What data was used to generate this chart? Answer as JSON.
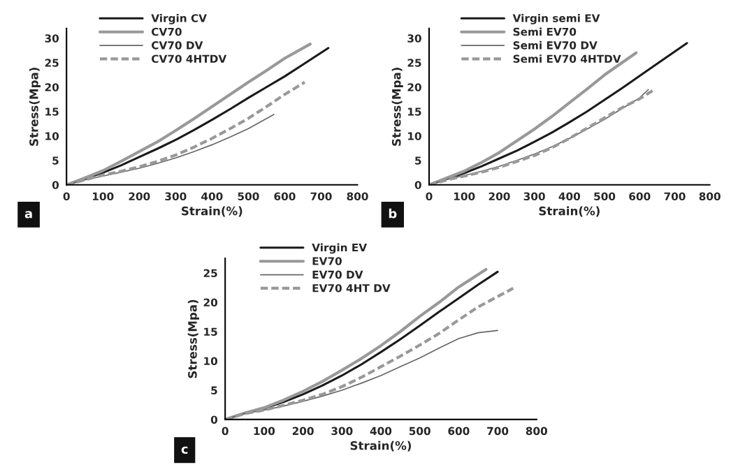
{
  "chart_data": [
    {
      "type": "line",
      "xlabel": "Strain(%)",
      "ylabel": "Stress(Mpa)",
      "xlim": [
        0,
        800
      ],
      "ylim": [
        0,
        32
      ],
      "xticks": [
        0,
        100,
        200,
        300,
        400,
        500,
        600,
        700,
        800
      ],
      "yticks": [
        0,
        5,
        10,
        15,
        20,
        25,
        30
      ],
      "grid": false,
      "legend": "top left",
      "marker": "none",
      "annotations": [
        "a"
      ],
      "series": [
        {
          "name": "Virgin CV",
          "color": "#1a1a1a",
          "line_style": "solid",
          "x": [
            0,
            50,
            100,
            150,
            200,
            250,
            300,
            350,
            400,
            450,
            500,
            550,
            600,
            650,
            720
          ],
          "values": [
            0,
            1.2,
            2.5,
            4,
            5.7,
            7.4,
            9.2,
            11.2,
            13.3,
            15.5,
            17.8,
            20,
            22.2,
            24.6,
            28
          ]
        },
        {
          "name": "CV70",
          "color": "#999999",
          "line_style": "solid",
          "x": [
            0,
            50,
            100,
            150,
            200,
            250,
            300,
            350,
            400,
            450,
            500,
            550,
            600,
            670
          ],
          "values": [
            0,
            1.4,
            2.9,
            4.8,
            6.8,
            8.8,
            11.1,
            13.5,
            16,
            18.5,
            21,
            23.4,
            25.9,
            28.8
          ]
        },
        {
          "name": "CV70 DV",
          "color": "#666666",
          "line_style": "solid",
          "x": [
            0,
            50,
            100,
            150,
            200,
            250,
            300,
            350,
            400,
            450,
            500,
            570
          ],
          "values": [
            0,
            1,
            1.8,
            2.6,
            3.4,
            4.4,
            5.5,
            6.8,
            8.2,
            9.8,
            11.5,
            14.4
          ]
        },
        {
          "name": "CV70 4HTDV",
          "color": "#999999",
          "line_style": "dashed",
          "x": [
            0,
            50,
            100,
            150,
            200,
            250,
            300,
            350,
            400,
            450,
            500,
            550,
            600,
            655
          ],
          "values": [
            0,
            1,
            2,
            2.8,
            3.7,
            4.8,
            6.1,
            7.7,
            9.5,
            11.5,
            13.6,
            16,
            18.5,
            21
          ]
        }
      ]
    },
    {
      "type": "line",
      "xlabel": "Strain(%)",
      "ylabel": "Stress(Mpa)",
      "xlim": [
        0,
        800
      ],
      "ylim": [
        0,
        32
      ],
      "xticks": [
        0,
        100,
        200,
        300,
        400,
        500,
        600,
        700,
        800
      ],
      "yticks": [
        0,
        5,
        10,
        15,
        20,
        25,
        30
      ],
      "grid": false,
      "legend": "top left",
      "marker": "none",
      "annotations": [
        "b"
      ],
      "series": [
        {
          "name": "Virgin semi EV",
          "color": "#1a1a1a",
          "line_style": "solid",
          "x": [
            0,
            50,
            100,
            150,
            200,
            250,
            300,
            350,
            400,
            450,
            500,
            550,
            600,
            650,
            735
          ],
          "values": [
            0,
            1.2,
            2.4,
            3.8,
            5.4,
            7,
            8.8,
            10.7,
            12.8,
            15,
            17.4,
            19.8,
            22.3,
            24.8,
            29
          ]
        },
        {
          "name": "Semi EV70",
          "color": "#999999",
          "line_style": "solid",
          "x": [
            0,
            50,
            100,
            150,
            200,
            250,
            300,
            350,
            400,
            450,
            500,
            550,
            590
          ],
          "values": [
            0,
            1.4,
            2.8,
            4.6,
            6.6,
            9,
            11.4,
            14,
            16.8,
            19.6,
            22.5,
            25,
            27
          ]
        },
        {
          "name": "Semi EV70 DV",
          "color": "#666666",
          "line_style": "solid",
          "x": [
            0,
            50,
            100,
            150,
            200,
            250,
            300,
            350,
            400,
            450,
            500,
            550,
            600,
            625
          ],
          "values": [
            0,
            1.1,
            1.9,
            2.8,
            3.8,
            5,
            6.3,
            7.8,
            9.5,
            11.4,
            13.4,
            15.6,
            17.8,
            19.5
          ]
        },
        {
          "name": "Semi EV70 4HTDV",
          "color": "#999999",
          "line_style": "dashed",
          "x": [
            0,
            50,
            100,
            150,
            200,
            250,
            300,
            350,
            400,
            450,
            500,
            550,
            600,
            640
          ],
          "values": [
            0,
            1,
            1.8,
            2.6,
            3.6,
            4.8,
            6,
            7.6,
            9.5,
            11.6,
            13.7,
            15.8,
            17.6,
            19.4
          ]
        }
      ]
    },
    {
      "type": "line",
      "xlabel": "Strain(%)",
      "ylabel": "Stress(Mpa)",
      "xlim": [
        0,
        800
      ],
      "ylim": [
        0,
        27.5
      ],
      "xticks": [
        0,
        100,
        200,
        300,
        400,
        500,
        600,
        700,
        800
      ],
      "yticks": [
        0,
        5,
        10,
        15,
        20,
        25
      ],
      "grid": false,
      "legend": "top left",
      "marker": "none",
      "annotations": [
        "c"
      ],
      "series": [
        {
          "name": "Virgin EV",
          "color": "#1a1a1a",
          "line_style": "solid",
          "x": [
            0,
            50,
            100,
            150,
            200,
            250,
            300,
            350,
            400,
            450,
            500,
            550,
            600,
            650,
            700
          ],
          "values": [
            0,
            1.1,
            1.9,
            3,
            4.3,
            5.8,
            7.5,
            9.4,
            11.5,
            13.7,
            16,
            18.4,
            20.7,
            23,
            25.2
          ]
        },
        {
          "name": "EV70",
          "color": "#999999",
          "line_style": "solid",
          "x": [
            0,
            50,
            100,
            150,
            200,
            250,
            300,
            350,
            400,
            450,
            500,
            550,
            600,
            670
          ],
          "values": [
            0,
            1.1,
            2,
            3.3,
            4.8,
            6.5,
            8.4,
            10.4,
            12.6,
            15,
            17.6,
            20,
            22.6,
            25.6
          ]
        },
        {
          "name": "EV70 DV",
          "color": "#666666",
          "line_style": "solid",
          "x": [
            0,
            50,
            100,
            150,
            200,
            250,
            300,
            350,
            400,
            450,
            500,
            550,
            600,
            650,
            700
          ],
          "values": [
            0,
            1,
            1.6,
            2.3,
            3.1,
            4,
            5,
            6.2,
            7.5,
            9,
            10.5,
            12.2,
            13.8,
            14.8,
            15.2
          ]
        },
        {
          "name": "EV70 4HT DV",
          "color": "#999999",
          "line_style": "dashed",
          "x": [
            0,
            50,
            100,
            150,
            200,
            250,
            300,
            350,
            400,
            450,
            500,
            550,
            600,
            650,
            740
          ],
          "values": [
            0,
            1,
            1.6,
            2.4,
            3.3,
            4.3,
            5.6,
            7.2,
            9,
            10.8,
            12.7,
            14.7,
            17,
            19.2,
            22.4
          ]
        }
      ]
    }
  ]
}
